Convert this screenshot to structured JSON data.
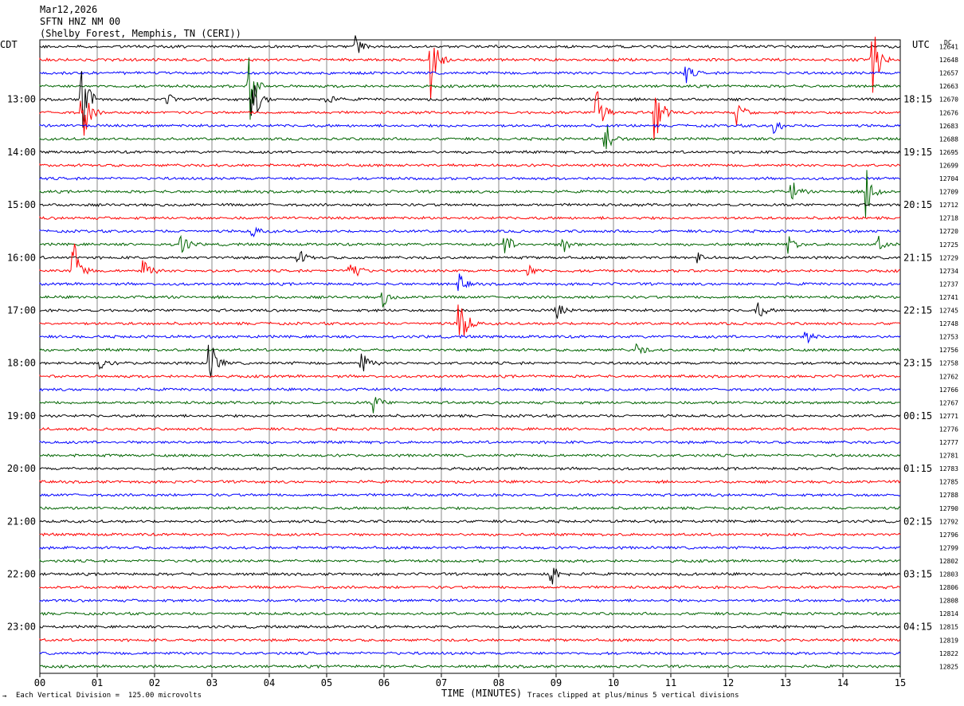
{
  "header": {
    "date": "Mar12,2026",
    "station": "SFTN HNZ NM 00",
    "location": "(Shelby Forest, Memphis, TN (CERI))"
  },
  "axes": {
    "left_zone": "CDT",
    "right_zone": "UTC",
    "dc_label": "DC",
    "xlabel": "TIME (MINUTES)"
  },
  "footer": {
    "scale_note": "Each Vertical Division =  125.00 microvolts",
    "clip_note": "Traces clipped at plus/minus 5 vertical divisions",
    "corner_mark": "→"
  },
  "chart_data": {
    "type": "line",
    "title": "SFTN HNZ NM 00",
    "x_range": [
      0,
      15
    ],
    "x_ticks": [
      "00",
      "01",
      "02",
      "03",
      "04",
      "05",
      "06",
      "07",
      "08",
      "09",
      "10",
      "11",
      "12",
      "13",
      "14",
      "15"
    ],
    "trace_colors": [
      "#000000",
      "#ff0000",
      "#0000ff",
      "#006400"
    ],
    "left_time_labels": [
      "13:00",
      "14:00",
      "15:00",
      "16:00",
      "17:00",
      "18:00",
      "19:00",
      "20:00",
      "21:00",
      "22:00",
      "23:00"
    ],
    "right_time_labels": [
      "18:15",
      "19:15",
      "20:15",
      "21:15",
      "22:15",
      "23:15",
      "00:15",
      "01:15",
      "02:15",
      "03:15",
      "04:15"
    ],
    "dc_offsets": [
      "12641",
      "12648",
      "12657",
      "12663",
      "12670",
      "12676",
      "12683",
      "12688",
      "12695",
      "12699",
      "12704",
      "12709",
      "12712",
      "12718",
      "12720",
      "12725",
      "12729",
      "12734",
      "12737",
      "12741",
      "12745",
      "12748",
      "12753",
      "12756",
      "12758",
      "12762",
      "12766",
      "12767",
      "12771",
      "12776",
      "12777",
      "12781",
      "12783",
      "12785",
      "12788",
      "12790",
      "12792",
      "12796",
      "12799",
      "12802",
      "12803",
      "12806",
      "12808",
      "12814",
      "12815",
      "12819",
      "12822",
      "12825"
    ],
    "events": [
      {
        "line": 0,
        "minute": 5.5,
        "amp": 14
      },
      {
        "line": 1,
        "minute": 6.8,
        "amp": 60
      },
      {
        "line": 1,
        "minute": 14.5,
        "amp": 60
      },
      {
        "line": 2,
        "minute": 11.25,
        "amp": 14
      },
      {
        "line": 3,
        "minute": 3.65,
        "amp": 50
      },
      {
        "line": 4,
        "minute": 0.72,
        "amp": 70
      },
      {
        "line": 4,
        "minute": 2.2,
        "amp": 10
      },
      {
        "line": 4,
        "minute": 3.7,
        "amp": 40
      },
      {
        "line": 4,
        "minute": 4.95,
        "amp": 12
      },
      {
        "line": 5,
        "minute": 0.72,
        "amp": 55
      },
      {
        "line": 5,
        "minute": 9.7,
        "amp": 60
      },
      {
        "line": 5,
        "minute": 10.7,
        "amp": 60
      },
      {
        "line": 5,
        "minute": 12.15,
        "amp": 18
      },
      {
        "line": 6,
        "minute": 12.8,
        "amp": 12
      },
      {
        "line": 7,
        "minute": 9.85,
        "amp": 25
      },
      {
        "line": 11,
        "minute": 13.1,
        "amp": 16
      },
      {
        "line": 11,
        "minute": 14.4,
        "amp": 45
      },
      {
        "line": 14,
        "minute": 3.7,
        "amp": 8
      },
      {
        "line": 15,
        "minute": 2.45,
        "amp": 20
      },
      {
        "line": 15,
        "minute": 8.1,
        "amp": 18
      },
      {
        "line": 15,
        "minute": 9.1,
        "amp": 14
      },
      {
        "line": 15,
        "minute": 13.05,
        "amp": 14
      },
      {
        "line": 15,
        "minute": 14.6,
        "amp": 12
      },
      {
        "line": 16,
        "minute": 4.5,
        "amp": 12
      },
      {
        "line": 16,
        "minute": 11.45,
        "amp": 8
      },
      {
        "line": 17,
        "minute": 0.58,
        "amp": 55
      },
      {
        "line": 17,
        "minute": 1.8,
        "amp": 18
      },
      {
        "line": 17,
        "minute": 5.4,
        "amp": 28
      },
      {
        "line": 17,
        "minute": 8.5,
        "amp": 12
      },
      {
        "line": 18,
        "minute": 7.3,
        "amp": 14
      },
      {
        "line": 19,
        "minute": 5.95,
        "amp": 16
      },
      {
        "line": 20,
        "minute": 9.0,
        "amp": 14
      },
      {
        "line": 20,
        "minute": 12.5,
        "amp": 14
      },
      {
        "line": 21,
        "minute": 7.3,
        "amp": 55
      },
      {
        "line": 22,
        "minute": 13.35,
        "amp": 12
      },
      {
        "line": 23,
        "minute": 10.4,
        "amp": 10
      },
      {
        "line": 24,
        "minute": 1.05,
        "amp": 8
      },
      {
        "line": 24,
        "minute": 2.95,
        "amp": 40
      },
      {
        "line": 24,
        "minute": 5.6,
        "amp": 18
      },
      {
        "line": 27,
        "minute": 5.8,
        "amp": 16
      },
      {
        "line": 40,
        "minute": 8.9,
        "amp": 22
      }
    ]
  }
}
